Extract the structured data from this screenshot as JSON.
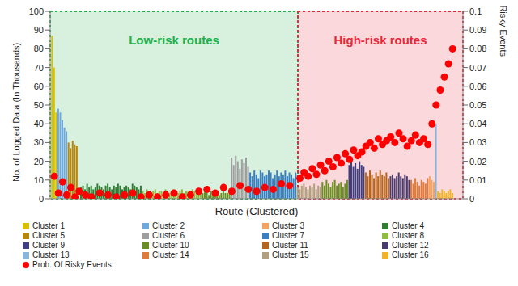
{
  "chart_data": {
    "type": "bar",
    "x_label": "Route (Clustered)",
    "y_label": "No. of Logged Data (In Thousands)",
    "y2_label": "Prob. of Risky Events",
    "xlim": [
      0,
      200
    ],
    "ylim": [
      0,
      100
    ],
    "yticks": [
      0,
      10,
      20,
      30,
      40,
      50,
      60,
      70,
      80,
      90,
      100
    ],
    "y2lim": [
      0,
      0.1
    ],
    "y2ticks": [
      0,
      0.01,
      0.02,
      0.03,
      0.04,
      0.05,
      0.06,
      0.07,
      0.08,
      0.09,
      0.1
    ],
    "tick_labels": "y",
    "legend": "bottom",
    "regions": [
      {
        "label": "Low-risk routes",
        "x": [
          0,
          120
        ],
        "color": "#22b04a"
      },
      {
        "label": "High-risk routes",
        "x": [
          120,
          200
        ],
        "color": "#e8283a"
      }
    ],
    "series": [
      {
        "name": "Cluster 1",
        "color": "#d9c000",
        "x": [
          1,
          2,
          3
        ],
        "values": [
          87,
          70,
          46
        ]
      },
      {
        "name": "Cluster 2",
        "color": "#6fa8dc",
        "x": [
          4,
          5,
          6,
          7,
          8
        ],
        "values": [
          48,
          46,
          42,
          38,
          36
        ]
      },
      {
        "name": "Cluster 3",
        "color": "#f4a460",
        "x": [
          184,
          185,
          186
        ],
        "values": [
          12,
          10,
          9
        ]
      },
      {
        "name": "Cluster 4",
        "color": "#2e7d32",
        "x": [
          15,
          16,
          17,
          18,
          19,
          20,
          21,
          22,
          23,
          24,
          25,
          26,
          27,
          28,
          29,
          30,
          31,
          32,
          33,
          34,
          35,
          36,
          37,
          38,
          39,
          40,
          41,
          42,
          43,
          44
        ],
        "values": [
          6,
          7,
          5,
          8,
          6,
          7,
          5,
          6,
          8,
          7,
          6,
          5,
          7,
          8,
          6,
          5,
          7,
          6,
          8,
          7,
          5,
          6,
          7,
          6,
          5,
          8,
          7,
          6,
          5,
          7
        ]
      },
      {
        "name": "Cluster 5",
        "color": "#b8860b",
        "x": [
          9,
          10,
          11,
          12,
          13
        ],
        "values": [
          30,
          27,
          31,
          29,
          28
        ]
      },
      {
        "name": "Cluster 6",
        "color": "#9e9e9e",
        "x": [
          88,
          89,
          90,
          91,
          92,
          93,
          94,
          95,
          96
        ],
        "values": [
          22,
          18,
          23,
          20,
          16,
          21,
          19,
          22,
          17
        ]
      },
      {
        "name": "Cluster 7",
        "color": "#3a7fc1",
        "x": [
          97,
          98,
          99,
          100,
          101,
          102,
          103,
          104,
          105,
          106,
          107,
          108,
          109,
          110,
          111,
          112,
          113,
          114,
          115,
          116,
          117,
          118,
          119
        ],
        "values": [
          14,
          12,
          15,
          13,
          11,
          15,
          14,
          12,
          13,
          15,
          14,
          11,
          13,
          15,
          12,
          14,
          13,
          15,
          12,
          14,
          13,
          11,
          14
        ]
      },
      {
        "name": "Cluster 8",
        "color": "#8fbc3f",
        "x": [
          45,
          46,
          47,
          48,
          49,
          50,
          51,
          52,
          53,
          54,
          55,
          56,
          57,
          58,
          59,
          60,
          61,
          62,
          63,
          64,
          65,
          66,
          67,
          68,
          69,
          70,
          71,
          72,
          73
        ],
        "values": [
          4,
          3,
          5,
          4,
          3,
          4,
          5,
          3,
          4,
          4,
          3,
          5,
          4,
          3,
          4,
          5,
          4,
          3,
          4,
          5,
          3,
          4,
          4,
          3,
          5,
          4,
          3,
          4,
          5
        ]
      },
      {
        "name": "Cluster 9",
        "color": "#3f3f7f",
        "x": [
          145,
          146,
          147,
          148,
          149,
          150,
          151,
          152
        ],
        "values": [
          18,
          20,
          17,
          19,
          16,
          20,
          18,
          17
        ]
      },
      {
        "name": "Cluster 10",
        "color": "#6b8e23",
        "x": [
          74,
          75,
          76,
          77,
          78,
          79,
          80,
          81,
          82,
          83,
          84,
          85,
          86,
          87,
          132,
          133,
          134,
          135,
          136,
          137,
          138,
          139,
          140,
          141,
          142,
          143,
          144
        ],
        "values": [
          3,
          4,
          3,
          2,
          4,
          3,
          3,
          4,
          2,
          3,
          4,
          3,
          3,
          4,
          9,
          7,
          10,
          8,
          6,
          9,
          10,
          7,
          8,
          9,
          6,
          8,
          10
        ]
      },
      {
        "name": "Cluster 11",
        "color": "#b5651d",
        "x": [
          153,
          154,
          155,
          156,
          157,
          158,
          159,
          160,
          161,
          162,
          163,
          164
        ],
        "values": [
          14,
          12,
          15,
          13,
          11,
          14,
          12,
          15,
          13,
          12,
          14,
          11
        ]
      },
      {
        "name": "Cluster 12",
        "color": "#4b3b6b",
        "x": [
          165,
          166,
          167,
          168,
          169,
          170,
          171,
          172,
          173,
          174
        ],
        "values": [
          12,
          13,
          11,
          12,
          14,
          12,
          11,
          13,
          12,
          10
        ]
      },
      {
        "name": "Cluster 13",
        "color": "#8ab4d8",
        "x": [
          187
        ],
        "values": [
          40
        ]
      },
      {
        "name": "Cluster 14",
        "color": "#e07b39",
        "x": [
          175,
          176,
          177,
          178,
          179,
          180,
          181,
          182,
          183
        ],
        "values": [
          10,
          8,
          11,
          9,
          7,
          10,
          9,
          8,
          11
        ]
      },
      {
        "name": "Cluster 15",
        "color": "#b0a080",
        "x": [
          120,
          121,
          122,
          123,
          124,
          125,
          126,
          127,
          128,
          129,
          130,
          131
        ],
        "values": [
          6,
          5,
          7,
          8,
          6,
          5,
          7,
          6,
          8,
          5,
          7,
          6
        ]
      },
      {
        "name": "Cluster 16",
        "color": "#f0b429",
        "x": [
          188,
          189,
          190,
          191,
          192,
          193,
          194,
          195
        ],
        "values": [
          4,
          3,
          5,
          4,
          3,
          4,
          5,
          3
        ]
      },
      {
        "name": "Prob. Of Risky Events",
        "type": "scatter",
        "axis": "y2",
        "color": "#ff0000",
        "marker": "circle",
        "x": [
          2,
          4,
          6,
          8,
          10,
          12,
          14,
          17,
          20,
          24,
          28,
          32,
          36,
          40,
          44,
          48,
          52,
          56,
          60,
          64,
          68,
          72,
          76,
          80,
          84,
          88,
          92,
          96,
          100,
          104,
          108,
          112,
          116,
          121,
          123,
          125,
          127,
          129,
          131,
          133,
          135,
          137,
          139,
          141,
          143,
          145,
          147,
          149,
          151,
          153,
          155,
          157,
          159,
          161,
          163,
          165,
          167,
          169,
          171,
          173,
          175,
          177,
          179,
          181,
          183,
          185,
          187,
          189,
          191,
          193,
          195
        ],
        "values": [
          0.012,
          0.003,
          0.009,
          0.002,
          0.006,
          0.001,
          0.004,
          0.002,
          0.001,
          0.003,
          0.002,
          0.001,
          0.002,
          0.003,
          0.001,
          0.002,
          0.001,
          0.002,
          0.003,
          0.001,
          0.002,
          0.004,
          0.005,
          0.003,
          0.006,
          0.004,
          0.007,
          0.005,
          0.004,
          0.006,
          0.005,
          0.008,
          0.007,
          0.011,
          0.014,
          0.012,
          0.016,
          0.013,
          0.018,
          0.015,
          0.02,
          0.017,
          0.022,
          0.019,
          0.024,
          0.021,
          0.026,
          0.023,
          0.025,
          0.028,
          0.03,
          0.027,
          0.032,
          0.029,
          0.031,
          0.033,
          0.03,
          0.035,
          0.032,
          0.028,
          0.031,
          0.034,
          0.03,
          0.032,
          0.029,
          0.04,
          0.05,
          0.058,
          0.065,
          0.072,
          0.08
        ]
      }
    ]
  }
}
